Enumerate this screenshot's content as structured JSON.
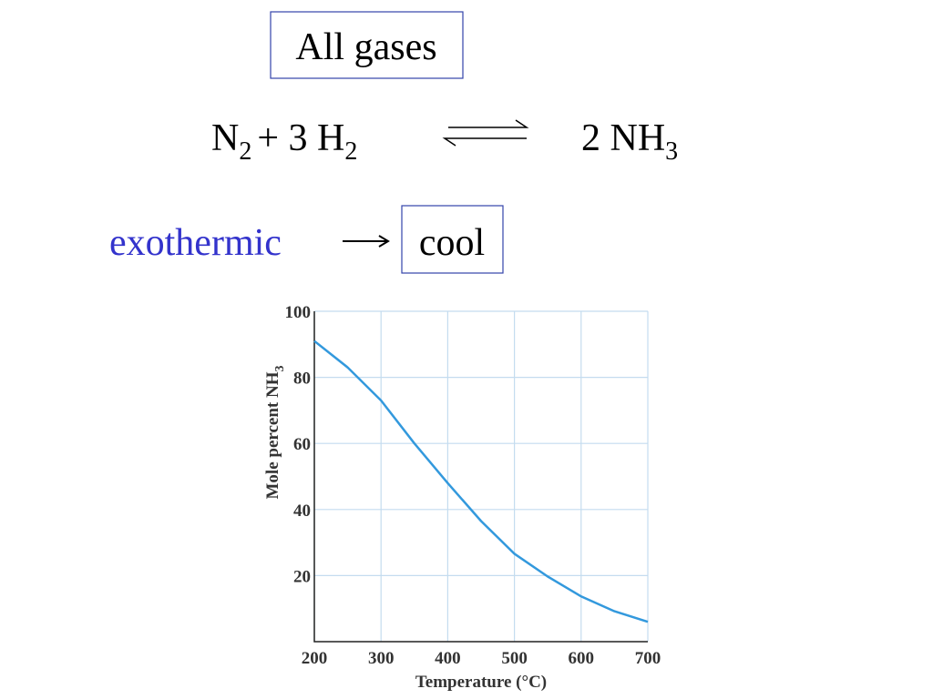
{
  "header": {
    "label": "All gases"
  },
  "equation": {
    "reactants": [
      {
        "base": "N",
        "sub": "2"
      },
      {
        "base": "+ 3 H",
        "sub": "2"
      }
    ],
    "product": {
      "base": "2 NH",
      "sub": "3"
    }
  },
  "note": {
    "cause": "exothermic",
    "effect": "cool"
  },
  "chart_data": {
    "type": "line",
    "x_label": "Temperature (°C)",
    "y_label": {
      "base": "Mole percent NH",
      "sub": "3"
    },
    "x": [
      200,
      250,
      300,
      350,
      400,
      450,
      500,
      550,
      600,
      650,
      700
    ],
    "series": [
      {
        "color": "#3399dd",
        "values": [
          91,
          83,
          73,
          60,
          48,
          36.5,
          26.6,
          19.7,
          13.7,
          9.2,
          6
        ]
      }
    ],
    "xlim": [
      200,
      700
    ],
    "ylim": [
      0,
      100
    ],
    "xticks": [
      200,
      300,
      400,
      500,
      600,
      700
    ],
    "yticks": [
      20,
      40,
      60,
      80,
      100
    ],
    "grid": true
  }
}
